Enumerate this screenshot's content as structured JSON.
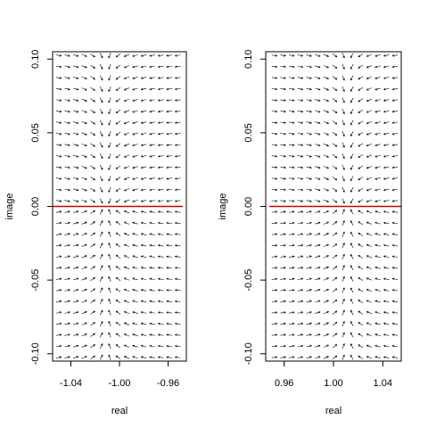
{
  "chart_data": [
    {
      "type": "vector-field",
      "title": "",
      "xlabel": "real",
      "ylabel": "image",
      "xlim": [
        -1.055,
        -0.945
      ],
      "ylim": [
        -0.105,
        0.105
      ],
      "xticks": [
        -1.04,
        -1.0,
        -0.96
      ],
      "xtick_labels": [
        "-1.04",
        "-1.00",
        "-0.96"
      ],
      "yticks": [
        -0.1,
        -0.05,
        0.0,
        0.05,
        0.1
      ],
      "ytick_labels": [
        "-0.10",
        "-0.05",
        "0.00",
        "0.05",
        "0.10"
      ],
      "grid_x": {
        "start": -1.05,
        "end": -0.952,
        "n": 15
      },
      "grid_y": {
        "start": -0.1025,
        "end": 0.1025,
        "n": 28
      },
      "attractor": {
        "x": -1.0,
        "y": 0.0
      },
      "trajectory": {
        "y": 0.0,
        "x_from": -1.055,
        "x_to": -0.948,
        "color": "#cc0000"
      },
      "arrow_color": "#000000"
    },
    {
      "type": "vector-field",
      "title": "",
      "xlabel": "real",
      "ylabel": "image",
      "xlim": [
        0.945,
        1.055
      ],
      "ylim": [
        -0.105,
        0.105
      ],
      "xticks": [
        0.96,
        1.0,
        1.04
      ],
      "xtick_labels": [
        "0.96",
        "1.00",
        "1.04"
      ],
      "yticks": [
        -0.1,
        -0.05,
        0.0,
        0.05,
        0.1
      ],
      "ytick_labels": [
        "-0.10",
        "-0.05",
        "0.00",
        "0.05",
        "0.10"
      ],
      "grid_x": {
        "start": 0.952,
        "end": 1.05,
        "n": 15
      },
      "grid_y": {
        "start": -0.1025,
        "end": 0.1025,
        "n": 28
      },
      "attractor": {
        "x": 1.0,
        "y": 0.0
      },
      "trajectory": {
        "y": 0.0,
        "x_from": 0.948,
        "x_to": 1.055,
        "color": "#cc0000"
      },
      "arrow_color": "#000000"
    }
  ]
}
